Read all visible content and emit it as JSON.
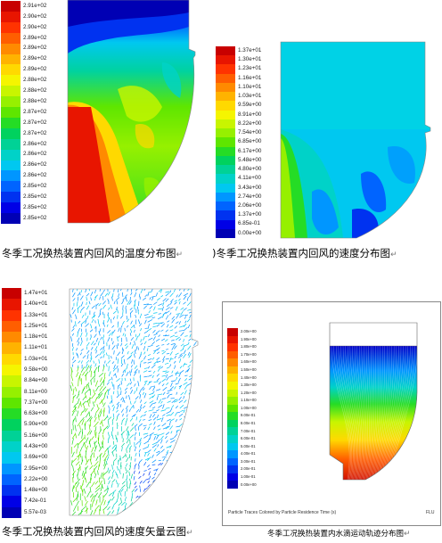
{
  "panels": {
    "temperature": {
      "caption": "冬季工况换热装置内回风的温度分布图",
      "colorbar_labels": [
        "2.91e+02",
        "2.90e+02",
        "2.90e+02",
        "2.89e+02",
        "2.89e+02",
        "2.89e+02",
        "2.89e+02",
        "2.88e+02",
        "2.88e+02",
        "2.88e+02",
        "2.87e+02",
        "2.87e+02",
        "2.87e+02",
        "2.86e+02",
        "2.86e+02",
        "2.86e+02",
        "2.86e+02",
        "2.85e+02",
        "2.85e+02",
        "2.85e+02",
        "2.85e+02"
      ]
    },
    "velocity": {
      "caption": "冬季工况换热装置内回风的速度分布图",
      "colorbar_labels": [
        "1.37e+01",
        "1.30e+01",
        "1.23e+01",
        "1.16e+01",
        "1.10e+01",
        "1.03e+01",
        "9.59e+00",
        "8.91e+00",
        "8.22e+00",
        "7.54e+00",
        "6.85e+00",
        "6.17e+00",
        "5.48e+00",
        "4.80e+00",
        "4.11e+00",
        "3.43e+00",
        "2.74e+00",
        "2.06e+00",
        "1.37e+00",
        "6.85e-01",
        "0.00e+00"
      ]
    },
    "vector": {
      "caption": "冬季工况换热装置内回风的速度矢量云图",
      "colorbar_labels": [
        "1.47e+01",
        "1.40e+01",
        "1.33e+01",
        "1.25e+01",
        "1.18e+01",
        "1.11e+01",
        "1.03e+01",
        "9.58e+00",
        "8.84e+00",
        "8.11e+00",
        "7.37e+00",
        "6.63e+00",
        "5.90e+00",
        "5.16e+00",
        "4.43e+00",
        "3.69e+00",
        "2.95e+00",
        "2.22e+00",
        "1.48e+00",
        "7.42e-01",
        "5.57e-03"
      ]
    },
    "particles": {
      "caption": "冬季工况换热装置内水滴运动轨迹分布图",
      "colorbar_labels": [
        "2.00e+00",
        "1.90e+00",
        "1.80e+00",
        "1.70e+00",
        "1.60e+00",
        "1.50e+00",
        "1.40e+00",
        "1.30e+00",
        "1.20e+00",
        "1.10e+00",
        "1.00e+00",
        "9.00e-01",
        "8.00e-01",
        "7.00e-01",
        "6.00e-01",
        "5.00e-01",
        "4.00e-01",
        "3.00e-01",
        "2.00e-01",
        "1.00e-01",
        "0.00e+00"
      ],
      "footer_note": "Particle Traces Colored by Particle Residence Time (s)",
      "footer_right": "FLU"
    }
  },
  "return_mark": "↵",
  "colors": {
    "jet": [
      "#c80000",
      "#e81500",
      "#ff3300",
      "#ff5e00",
      "#ff8a00",
      "#ffb300",
      "#ffd900",
      "#f5f500",
      "#c8f500",
      "#96f000",
      "#5ee600",
      "#25dc25",
      "#00d25e",
      "#00d296",
      "#00d2c8",
      "#00c8f0",
      "#0096ff",
      "#0064ff",
      "#0032f0",
      "#0000e6",
      "#0000b4"
    ]
  }
}
